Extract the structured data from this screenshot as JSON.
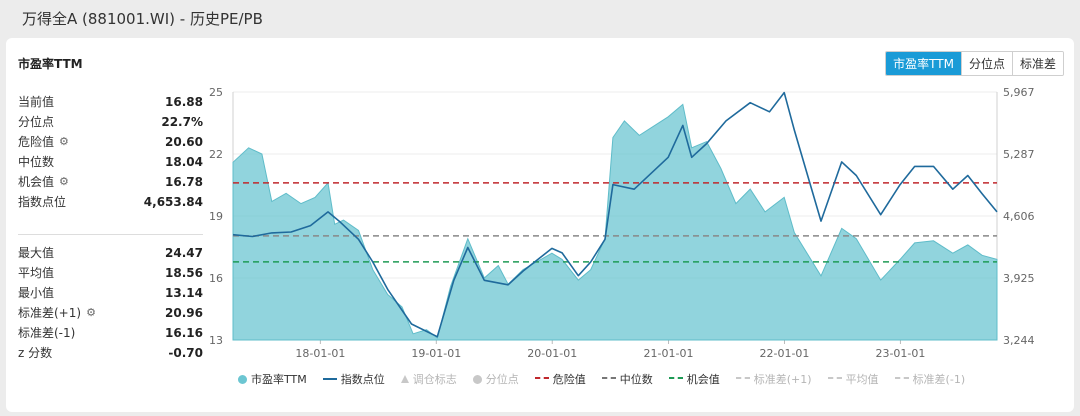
{
  "page": {
    "title": "万得全A (881001.WI) - 历史PE/PB"
  },
  "card": {
    "title": "市盈率TTM",
    "tabs": [
      {
        "label": "市盈率TTM",
        "active": true
      },
      {
        "label": "分位点",
        "active": false
      },
      {
        "label": "标准差",
        "active": false
      }
    ]
  },
  "stats_primary": [
    {
      "label": "当前值",
      "value": "16.88",
      "icon": ""
    },
    {
      "label": "分位点",
      "value": "22.7%",
      "icon": ""
    },
    {
      "label": "危险值",
      "value": "20.60",
      "icon": "gear-icon"
    },
    {
      "label": "中位数",
      "value": "18.04",
      "icon": ""
    },
    {
      "label": "机会值",
      "value": "16.78",
      "icon": "gear-icon"
    },
    {
      "label": "指数点位",
      "value": "4,653.84",
      "icon": ""
    }
  ],
  "stats_secondary": [
    {
      "label": "最大值",
      "value": "24.47",
      "icon": ""
    },
    {
      "label": "平均值",
      "value": "18.56",
      "icon": ""
    },
    {
      "label": "最小值",
      "value": "13.14",
      "icon": ""
    },
    {
      "label": "标准差(+1)",
      "value": "20.96",
      "icon": "gear-icon"
    },
    {
      "label": "标准差(-1)",
      "value": "16.16",
      "icon": ""
    },
    {
      "label": "z 分数",
      "value": "-0.70",
      "icon": ""
    }
  ],
  "legend": [
    {
      "label": "市盈率TTM",
      "symbol": "dot",
      "color": "#6cc6d2",
      "active": true
    },
    {
      "label": "指数点位",
      "symbol": "line",
      "color": "#1f6a9c",
      "active": true
    },
    {
      "label": "调仓标志",
      "symbol": "triangle",
      "color": "#c8c8c8",
      "active": false
    },
    {
      "label": "分位点",
      "symbol": "dot",
      "color": "#c8c8c8",
      "active": false
    },
    {
      "label": "危险值",
      "symbol": "dash",
      "color": "#c0282d",
      "active": true
    },
    {
      "label": "中位数",
      "symbol": "dash",
      "color": "#777777",
      "active": true
    },
    {
      "label": "机会值",
      "symbol": "dash",
      "color": "#1e9a55",
      "active": true
    },
    {
      "label": "标准差(+1)",
      "symbol": "dash",
      "color": "#c8c8c8",
      "active": false
    },
    {
      "label": "平均值",
      "symbol": "dash",
      "color": "#c8c8c8",
      "active": false
    },
    {
      "label": "标准差(-1)",
      "symbol": "dash",
      "color": "#c8c8c8",
      "active": false
    }
  ],
  "chart_data": {
    "type": "area",
    "x_tick_labels": [
      "18-01-01",
      "19-01-01",
      "20-01-01",
      "21-01-01",
      "22-01-01",
      "23-01-01"
    ],
    "x_range": [
      "2017-04-01",
      "2023-11-01"
    ],
    "y_left": {
      "range": [
        13,
        25
      ],
      "ticks": [
        13,
        16,
        19,
        22,
        25
      ]
    },
    "y_right": {
      "range": [
        3244,
        5967
      ],
      "ticks": [
        "3,244",
        "3,925",
        "4,606",
        "5,287",
        "5,967"
      ],
      "tick_values": [
        3244,
        3925,
        4606,
        5287,
        5967
      ]
    },
    "reference_lines": [
      {
        "name": "危险值",
        "value": 20.6,
        "color": "#c0282d"
      },
      {
        "name": "中位数",
        "value": 18.04,
        "color": "#888888"
      },
      {
        "name": "机会值",
        "value": 16.78,
        "color": "#1e9a55"
      }
    ],
    "series": [
      {
        "name": "市盈率TTM",
        "axis": "left",
        "color": "#6cc6d2",
        "points": [
          [
            "2017-04-01",
            21.6
          ],
          [
            "2017-05-20",
            22.3
          ],
          [
            "2017-07-01",
            22.0
          ],
          [
            "2017-08-01",
            19.7
          ],
          [
            "2017-09-15",
            20.1
          ],
          [
            "2017-11-01",
            19.6
          ],
          [
            "2017-12-15",
            19.9
          ],
          [
            "2018-01-25",
            20.6
          ],
          [
            "2018-02-15",
            18.6
          ],
          [
            "2018-03-15",
            18.8
          ],
          [
            "2018-05-01",
            18.3
          ],
          [
            "2018-06-15",
            16.4
          ],
          [
            "2018-08-01",
            15.2
          ],
          [
            "2018-09-15",
            14.6
          ],
          [
            "2018-10-20",
            13.3
          ],
          [
            "2018-12-01",
            13.5
          ],
          [
            "2019-01-04",
            13.1
          ],
          [
            "2019-02-15",
            15.6
          ],
          [
            "2019-04-10",
            17.9
          ],
          [
            "2019-06-01",
            16.0
          ],
          [
            "2019-07-15",
            16.6
          ],
          [
            "2019-08-15",
            15.7
          ],
          [
            "2019-10-01",
            16.4
          ],
          [
            "2019-12-31",
            17.2
          ],
          [
            "2020-02-01",
            16.9
          ],
          [
            "2020-03-23",
            15.9
          ],
          [
            "2020-05-01",
            16.4
          ],
          [
            "2020-06-15",
            17.9
          ],
          [
            "2020-07-10",
            22.8
          ],
          [
            "2020-08-15",
            23.6
          ],
          [
            "2020-10-01",
            22.9
          ],
          [
            "2020-12-31",
            23.8
          ],
          [
            "2021-02-15",
            24.4
          ],
          [
            "2021-03-15",
            22.3
          ],
          [
            "2021-05-01",
            22.6
          ],
          [
            "2021-06-15",
            21.3
          ],
          [
            "2021-08-01",
            19.6
          ],
          [
            "2021-09-15",
            20.3
          ],
          [
            "2021-11-01",
            19.2
          ],
          [
            "2021-12-31",
            19.9
          ],
          [
            "2022-02-01",
            18.2
          ],
          [
            "2022-04-26",
            16.1
          ],
          [
            "2022-06-30",
            18.4
          ],
          [
            "2022-08-15",
            17.9
          ],
          [
            "2022-10-31",
            15.9
          ],
          [
            "2022-12-31",
            16.9
          ],
          [
            "2023-02-15",
            17.7
          ],
          [
            "2023-04-15",
            17.8
          ],
          [
            "2023-06-15",
            17.2
          ],
          [
            "2023-08-01",
            17.6
          ],
          [
            "2023-09-15",
            17.1
          ],
          [
            "2023-11-01",
            16.9
          ]
        ]
      },
      {
        "name": "指数点位",
        "axis": "right",
        "color": "#1f6a9c",
        "points": [
          [
            "2017-04-01",
            4400
          ],
          [
            "2017-06-01",
            4380
          ],
          [
            "2017-08-01",
            4420
          ],
          [
            "2017-10-01",
            4430
          ],
          [
            "2017-12-01",
            4500
          ],
          [
            "2018-01-25",
            4650
          ],
          [
            "2018-03-01",
            4550
          ],
          [
            "2018-05-01",
            4350
          ],
          [
            "2018-06-15",
            4100
          ],
          [
            "2018-08-01",
            3800
          ],
          [
            "2018-10-15",
            3420
          ],
          [
            "2019-01-04",
            3280
          ],
          [
            "2019-02-25",
            3900
          ],
          [
            "2019-04-10",
            4260
          ],
          [
            "2019-06-01",
            3900
          ],
          [
            "2019-08-15",
            3850
          ],
          [
            "2019-10-01",
            4000
          ],
          [
            "2019-12-31",
            4250
          ],
          [
            "2020-02-01",
            4200
          ],
          [
            "2020-03-23",
            3950
          ],
          [
            "2020-05-01",
            4100
          ],
          [
            "2020-06-15",
            4350
          ],
          [
            "2020-07-10",
            4950
          ],
          [
            "2020-09-15",
            4900
          ],
          [
            "2020-12-31",
            5250
          ],
          [
            "2021-02-15",
            5600
          ],
          [
            "2021-03-15",
            5250
          ],
          [
            "2021-05-01",
            5400
          ],
          [
            "2021-07-01",
            5650
          ],
          [
            "2021-09-15",
            5850
          ],
          [
            "2021-11-15",
            5750
          ],
          [
            "2021-12-31",
            5960
          ],
          [
            "2022-02-01",
            5550
          ],
          [
            "2022-04-26",
            4550
          ],
          [
            "2022-06-30",
            5200
          ],
          [
            "2022-08-15",
            5050
          ],
          [
            "2022-10-31",
            4620
          ],
          [
            "2022-12-31",
            4950
          ],
          [
            "2023-02-15",
            5150
          ],
          [
            "2023-04-15",
            5150
          ],
          [
            "2023-06-15",
            4900
          ],
          [
            "2023-08-01",
            5050
          ],
          [
            "2023-09-15",
            4850
          ],
          [
            "2023-11-01",
            4650
          ]
        ]
      }
    ]
  }
}
